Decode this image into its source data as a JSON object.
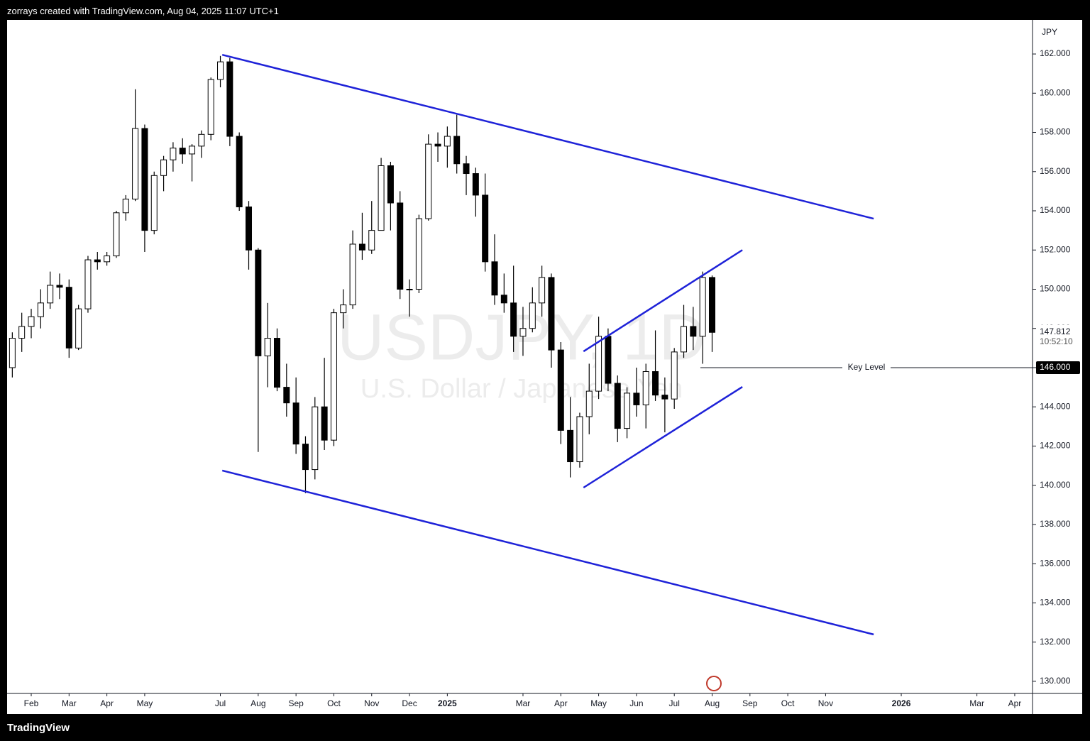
{
  "header": "zorrays created with TradingView.com, Aug 04, 2025 11:07 UTC+1",
  "footer": "TradingView",
  "chart_data": {
    "type": "candlestick",
    "title": "USDJPY, 1D",
    "subtitle": "U.S. Dollar / Japanese Yen",
    "currency": "JPY",
    "up_color": "#ffffff",
    "down_color": "#000000",
    "wick_color": "#000000",
    "xlim": [
      0.362,
      27.47
    ],
    "ylim": [
      129.38,
      163.74
    ],
    "xticks": [
      {
        "value": 1,
        "label": "Feb"
      },
      {
        "value": 2,
        "label": "Mar"
      },
      {
        "value": 3,
        "label": "Apr"
      },
      {
        "value": 4,
        "label": "May"
      },
      {
        "value": 6,
        "label": "Jul"
      },
      {
        "value": 7,
        "label": "Aug"
      },
      {
        "value": 8,
        "label": "Sep"
      },
      {
        "value": 9,
        "label": "Oct"
      },
      {
        "value": 10,
        "label": "Nov"
      },
      {
        "value": 11,
        "label": "Dec"
      },
      {
        "value": 12,
        "label": "2025"
      },
      {
        "value": 14,
        "label": "Mar"
      },
      {
        "value": 15,
        "label": "Apr"
      },
      {
        "value": 16,
        "label": "May"
      },
      {
        "value": 17,
        "label": "Jun"
      },
      {
        "value": 18,
        "label": "Jul"
      },
      {
        "value": 19,
        "label": "Aug"
      },
      {
        "value": 20,
        "label": "Sep"
      },
      {
        "value": 21,
        "label": "Oct"
      },
      {
        "value": 22,
        "label": "Nov"
      },
      {
        "value": 24,
        "label": "2026"
      },
      {
        "value": 26,
        "label": "Mar"
      },
      {
        "value": 27,
        "label": "Apr"
      }
    ],
    "year_ticks": [
      10,
      20
    ],
    "yticks": [
      {
        "value": 130,
        "label": "130.000"
      },
      {
        "value": 132,
        "label": "132.000"
      },
      {
        "value": 134,
        "label": "134.000"
      },
      {
        "value": 136,
        "label": "136.000"
      },
      {
        "value": 138,
        "label": "138.000"
      },
      {
        "value": 140,
        "label": "140.000"
      },
      {
        "value": 142,
        "label": "142.000"
      },
      {
        "value": 144,
        "label": "144.000"
      },
      {
        "value": 146,
        "label": "146.000"
      },
      {
        "value": 148,
        "label": "148.000"
      },
      {
        "value": 150,
        "label": "150.000"
      },
      {
        "value": 152,
        "label": "152.000"
      },
      {
        "value": 154,
        "label": "154.000"
      },
      {
        "value": 156,
        "label": "156.000"
      },
      {
        "value": 158,
        "label": "158.000"
      },
      {
        "value": 160,
        "label": "160.000"
      },
      {
        "value": 162,
        "label": "162.000"
      }
    ],
    "x": [
      0.5,
      0.75,
      1,
      1.25,
      1.5,
      1.75,
      2,
      2.25,
      2.5,
      2.75,
      3,
      3.25,
      3.5,
      3.75,
      4,
      4.25,
      4.5,
      4.75,
      5,
      5.25,
      5.5,
      5.75,
      6,
      6.25,
      6.5,
      6.75,
      7,
      7.25,
      7.5,
      7.75,
      8,
      8.25,
      8.5,
      8.75,
      9,
      9.25,
      9.5,
      9.75,
      10,
      10.25,
      10.5,
      10.75,
      11,
      11.25,
      11.5,
      11.75,
      12,
      12.25,
      12.5,
      12.75,
      13,
      13.25,
      13.5,
      13.75,
      14,
      14.25,
      14.5,
      14.75,
      15,
      15.25,
      15.5,
      15.75,
      16,
      16.25,
      16.5,
      16.75,
      17,
      17.25,
      17.5,
      17.75,
      18,
      18.25,
      18.5,
      18.75,
      19
    ],
    "open": [
      146.0,
      147.5,
      148.1,
      148.6,
      149.3,
      150.2,
      150.1,
      147.0,
      149.0,
      151.5,
      151.4,
      151.7,
      153.9,
      154.6,
      158.2,
      153.0,
      155.8,
      156.6,
      157.2,
      156.9,
      157.3,
      157.9,
      160.7,
      161.6,
      157.8,
      154.2,
      152.0,
      146.6,
      147.5,
      145.0,
      144.2,
      142.1,
      140.8,
      144.0,
      142.3,
      148.8,
      149.2,
      152.3,
      152.0,
      153.0,
      156.3,
      154.4,
      150.0,
      150.0,
      153.6,
      157.4,
      157.3,
      157.8,
      156.4,
      155.9,
      154.8,
      151.4,
      149.7,
      149.3,
      147.6,
      148.0,
      149.3,
      150.6,
      146.9,
      142.8,
      141.2,
      143.5,
      144.8,
      147.6,
      145.2,
      142.9,
      144.7,
      144.1,
      145.8,
      144.6,
      144.4,
      146.8,
      148.1,
      147.6,
      150.6
    ],
    "high": [
      147.8,
      148.8,
      149.0,
      150.0,
      150.9,
      150.8,
      150.5,
      149.2,
      151.7,
      151.9,
      151.9,
      154.0,
      154.8,
      160.2,
      158.4,
      156.0,
      156.8,
      157.5,
      157.7,
      157.4,
      158.1,
      160.8,
      161.9,
      161.8,
      158.0,
      154.5,
      152.1,
      149.3,
      148.0,
      146.2,
      145.5,
      142.5,
      144.5,
      146.5,
      149.0,
      150.0,
      153.0,
      153.9,
      154.5,
      156.7,
      156.5,
      155.0,
      150.5,
      153.8,
      157.9,
      158.0,
      158.3,
      158.9,
      156.8,
      156.2,
      155.9,
      152.8,
      150.8,
      151.2,
      149.1,
      150.1,
      151.2,
      150.8,
      147.3,
      144.5,
      143.7,
      146.2,
      148.6,
      148.0,
      145.6,
      145.0,
      146.0,
      146.2,
      147.9,
      145.5,
      147.0,
      149.2,
      149.1,
      150.9,
      150.7
    ],
    "low": [
      145.5,
      146.8,
      147.5,
      148.0,
      149.0,
      149.5,
      146.5,
      146.9,
      148.8,
      151.0,
      151.2,
      151.6,
      153.5,
      154.5,
      151.9,
      152.8,
      155.0,
      156.0,
      156.4,
      155.5,
      156.7,
      157.6,
      160.3,
      157.3,
      154.0,
      151.0,
      141.7,
      145.0,
      144.8,
      143.5,
      141.6,
      139.6,
      140.3,
      141.8,
      142.0,
      148.0,
      149.0,
      151.5,
      151.8,
      153.0,
      153.0,
      149.5,
      148.6,
      149.8,
      153.5,
      156.5,
      156.2,
      155.9,
      154.8,
      153.7,
      150.9,
      149.2,
      148.8,
      146.8,
      146.6,
      147.8,
      148.6,
      146.0,
      142.1,
      140.4,
      140.9,
      142.6,
      144.4,
      144.8,
      142.2,
      142.4,
      143.5,
      142.9,
      144.3,
      142.7,
      143.9,
      146.5,
      146.9,
      146.2,
      146.8
    ],
    "close": [
      147.5,
      148.1,
      148.6,
      149.3,
      150.2,
      150.1,
      147.0,
      149.0,
      151.5,
      151.4,
      151.7,
      153.9,
      154.6,
      158.2,
      153.0,
      155.8,
      156.6,
      157.2,
      156.9,
      157.3,
      157.9,
      160.7,
      161.6,
      157.8,
      154.2,
      152.0,
      146.6,
      147.5,
      145.0,
      144.2,
      142.1,
      140.8,
      144.0,
      142.3,
      148.8,
      149.2,
      152.3,
      152.0,
      153.0,
      156.3,
      154.4,
      150.0,
      150.0,
      153.6,
      157.4,
      157.3,
      157.8,
      156.4,
      155.9,
      154.8,
      151.4,
      149.7,
      149.3,
      147.6,
      148.0,
      149.3,
      150.6,
      146.9,
      142.8,
      141.2,
      143.5,
      144.8,
      147.6,
      145.2,
      142.9,
      144.7,
      144.1,
      145.8,
      144.6,
      144.4,
      146.8,
      148.1,
      147.6,
      150.6,
      147.8
    ],
    "last_price": 147.812,
    "countdown": "10:52:10",
    "trend_lines": [
      {
        "color": "#1e22d8",
        "x": [
          6.05,
          23.27
        ],
        "y": [
          161.96,
          153.6
        ]
      },
      {
        "color": "#1e22d8",
        "x": [
          6.05,
          23.27
        ],
        "y": [
          140.75,
          132.39
        ]
      },
      {
        "color": "#1e22d8",
        "x": [
          15.6,
          19.8
        ],
        "y": [
          146.83,
          152.0
        ]
      },
      {
        "color": "#1e22d8",
        "x": [
          15.6,
          19.8
        ],
        "y": [
          139.88,
          145.02
        ]
      }
    ],
    "key_level": {
      "label": "Key Level",
      "value": 146,
      "value_label": "146.000",
      "x_start": 18.69
    }
  }
}
